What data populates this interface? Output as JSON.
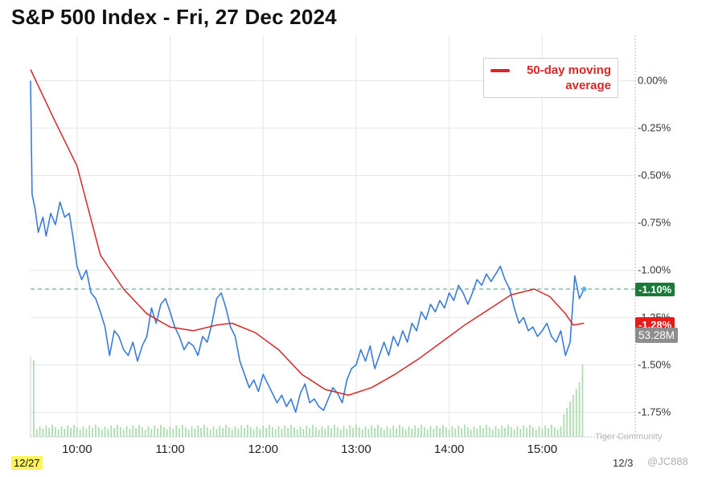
{
  "chart_data": {
    "type": "line",
    "title": "S&P 500 Index - Fri, 27 Dec 2024",
    "xlabel": "",
    "ylabel": "",
    "x_ticks": [
      "10:00",
      "11:00",
      "12:00",
      "13:00",
      "14:00",
      "15:00"
    ],
    "y_ticks": [
      "0.00%",
      "-0.25%",
      "-0.50%",
      "-0.75%",
      "-1.00%",
      "-1.25%",
      "-1.50%",
      "-1.75%"
    ],
    "x_range_minutes": [
      570,
      960
    ],
    "ylim": [
      -1.88,
      0.24
    ],
    "grid": true,
    "legend": {
      "position": "top-right",
      "label": "50-day moving average"
    },
    "series": [
      {
        "name": "",
        "color": "#3a7bd5",
        "points": [
          [
            570,
            0.0
          ],
          [
            571,
            -0.6
          ],
          [
            573,
            -0.68
          ],
          [
            575,
            -0.8
          ],
          [
            578,
            -0.72
          ],
          [
            580,
            -0.82
          ],
          [
            583,
            -0.7
          ],
          [
            586,
            -0.76
          ],
          [
            589,
            -0.64
          ],
          [
            592,
            -0.72
          ],
          [
            595,
            -0.7
          ],
          [
            598,
            -0.86
          ],
          [
            600,
            -0.98
          ],
          [
            603,
            -1.05
          ],
          [
            606,
            -1.0
          ],
          [
            609,
            -1.12
          ],
          [
            612,
            -1.15
          ],
          [
            615,
            -1.22
          ],
          [
            618,
            -1.3
          ],
          [
            621,
            -1.45
          ],
          [
            624,
            -1.32
          ],
          [
            627,
            -1.35
          ],
          [
            630,
            -1.42
          ],
          [
            633,
            -1.45
          ],
          [
            636,
            -1.38
          ],
          [
            639,
            -1.48
          ],
          [
            642,
            -1.4
          ],
          [
            645,
            -1.35
          ],
          [
            648,
            -1.2
          ],
          [
            651,
            -1.28
          ],
          [
            654,
            -1.18
          ],
          [
            657,
            -1.15
          ],
          [
            660,
            -1.22
          ],
          [
            663,
            -1.3
          ],
          [
            666,
            -1.35
          ],
          [
            669,
            -1.42
          ],
          [
            672,
            -1.38
          ],
          [
            675,
            -1.4
          ],
          [
            678,
            -1.45
          ],
          [
            681,
            -1.35
          ],
          [
            684,
            -1.38
          ],
          [
            687,
            -1.28
          ],
          [
            690,
            -1.15
          ],
          [
            693,
            -1.12
          ],
          [
            696,
            -1.2
          ],
          [
            699,
            -1.3
          ],
          [
            702,
            -1.35
          ],
          [
            705,
            -1.48
          ],
          [
            708,
            -1.55
          ],
          [
            711,
            -1.62
          ],
          [
            714,
            -1.58
          ],
          [
            717,
            -1.64
          ],
          [
            720,
            -1.55
          ],
          [
            723,
            -1.6
          ],
          [
            726,
            -1.65
          ],
          [
            729,
            -1.7
          ],
          [
            732,
            -1.66
          ],
          [
            735,
            -1.72
          ],
          [
            738,
            -1.68
          ],
          [
            741,
            -1.75
          ],
          [
            744,
            -1.65
          ],
          [
            747,
            -1.6
          ],
          [
            750,
            -1.7
          ],
          [
            753,
            -1.68
          ],
          [
            756,
            -1.72
          ],
          [
            759,
            -1.74
          ],
          [
            762,
            -1.68
          ],
          [
            765,
            -1.62
          ],
          [
            768,
            -1.65
          ],
          [
            771,
            -1.7
          ],
          [
            774,
            -1.58
          ],
          [
            777,
            -1.52
          ],
          [
            780,
            -1.5
          ],
          [
            783,
            -1.42
          ],
          [
            786,
            -1.48
          ],
          [
            789,
            -1.4
          ],
          [
            792,
            -1.52
          ],
          [
            795,
            -1.45
          ],
          [
            798,
            -1.38
          ],
          [
            801,
            -1.45
          ],
          [
            804,
            -1.35
          ],
          [
            807,
            -1.4
          ],
          [
            810,
            -1.32
          ],
          [
            813,
            -1.38
          ],
          [
            816,
            -1.28
          ],
          [
            819,
            -1.32
          ],
          [
            822,
            -1.22
          ],
          [
            825,
            -1.26
          ],
          [
            828,
            -1.18
          ],
          [
            831,
            -1.22
          ],
          [
            834,
            -1.16
          ],
          [
            837,
            -1.2
          ],
          [
            840,
            -1.12
          ],
          [
            843,
            -1.16
          ],
          [
            846,
            -1.08
          ],
          [
            849,
            -1.12
          ],
          [
            852,
            -1.18
          ],
          [
            855,
            -1.12
          ],
          [
            858,
            -1.05
          ],
          [
            861,
            -1.08
          ],
          [
            864,
            -1.02
          ],
          [
            867,
            -1.06
          ],
          [
            870,
            -1.02
          ],
          [
            873,
            -0.98
          ],
          [
            876,
            -1.05
          ],
          [
            879,
            -1.1
          ],
          [
            882,
            -1.2
          ],
          [
            885,
            -1.28
          ],
          [
            888,
            -1.25
          ],
          [
            891,
            -1.32
          ],
          [
            894,
            -1.3
          ],
          [
            897,
            -1.35
          ],
          [
            900,
            -1.32
          ],
          [
            903,
            -1.28
          ],
          [
            906,
            -1.35
          ],
          [
            909,
            -1.38
          ],
          [
            912,
            -1.32
          ],
          [
            915,
            -1.45
          ],
          [
            918,
            -1.38
          ],
          [
            921,
            -1.03
          ],
          [
            924,
            -1.15
          ],
          [
            927,
            -1.1
          ]
        ]
      },
      {
        "name": "50-day moving average",
        "color": "#d62728",
        "points": [
          [
            570,
            0.06
          ],
          [
            585,
            -0.2
          ],
          [
            600,
            -0.45
          ],
          [
            615,
            -0.92
          ],
          [
            630,
            -1.1
          ],
          [
            645,
            -1.23
          ],
          [
            660,
            -1.3
          ],
          [
            675,
            -1.32
          ],
          [
            690,
            -1.29
          ],
          [
            700,
            -1.28
          ],
          [
            715,
            -1.33
          ],
          [
            730,
            -1.42
          ],
          [
            745,
            -1.55
          ],
          [
            760,
            -1.63
          ],
          [
            775,
            -1.66
          ],
          [
            790,
            -1.62
          ],
          [
            805,
            -1.55
          ],
          [
            820,
            -1.47
          ],
          [
            835,
            -1.38
          ],
          [
            850,
            -1.29
          ],
          [
            865,
            -1.21
          ],
          [
            880,
            -1.13
          ],
          [
            895,
            -1.1
          ],
          [
            905,
            -1.14
          ],
          [
            915,
            -1.23
          ],
          [
            920,
            -1.29
          ],
          [
            927,
            -1.28
          ]
        ]
      }
    ],
    "annotations": {
      "last_value": "-1.10%",
      "ma_value": "-1.28%",
      "volume": "53.28M",
      "reference_line": -1.1
    },
    "volume_note": "volume bars along the bottom of the plot",
    "date_left": "12/27",
    "date_right": "12/3"
  },
  "watermark": {
    "community": "Tiger Community",
    "user": "@JC888"
  },
  "colors": {
    "price": "#3a7bd5",
    "ma": "#d62728",
    "last_tag": "#1a7a3a",
    "ma_tag": "#e31b1b",
    "vol_tag": "#8d8d8d",
    "volume": "#9fd6a3"
  }
}
